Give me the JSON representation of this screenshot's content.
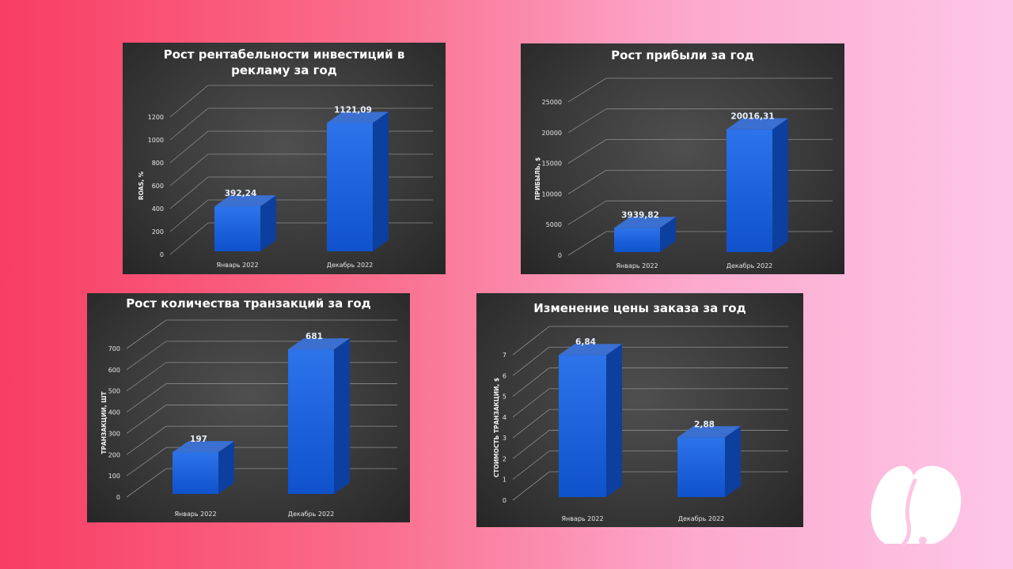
{
  "colors": {
    "bar_front": "#1a5fd9",
    "bar_top": "#3b6fd0",
    "bar_side": "#0d3f9e",
    "grid": "#8c8c8c",
    "panel_bg": "#3a3a3a"
  },
  "logo": {
    "icon": "elephant-logo-icon"
  },
  "chart_data": [
    {
      "type": "bar",
      "title_lines": [
        "Рост рентабельности инвестиций в",
        "рекламу за год"
      ],
      "ylabel": "ROAS, %",
      "xlabel": "",
      "categories": [
        "Январь 2022",
        "Декабрь 2022"
      ],
      "values": [
        392.24,
        1121.09
      ],
      "value_labels": [
        "392,24",
        "1121,09"
      ],
      "yticks": [
        0,
        200,
        400,
        600,
        800,
        1000,
        1200
      ],
      "ylim": [
        0,
        1200
      ],
      "grid": true,
      "legend": "none"
    },
    {
      "type": "bar",
      "title_lines": [
        "Рост прибыли за год"
      ],
      "ylabel": "ПРИБЫЛЬ, $",
      "xlabel": "",
      "categories": [
        "Январь 2022",
        "Декабрь 2022"
      ],
      "values": [
        3939.82,
        20016.31
      ],
      "value_labels": [
        "3939,82",
        "20016,31"
      ],
      "yticks": [
        0,
        5000,
        10000,
        15000,
        20000,
        25000
      ],
      "ylim": [
        0,
        25000
      ],
      "grid": true,
      "legend": "none"
    },
    {
      "type": "bar",
      "title_lines": [
        "Рост количества транзакций за год"
      ],
      "ylabel": "ТРАНЗАКЦИИ, ШТ",
      "xlabel": "",
      "categories": [
        "Январь 2022",
        "Декабрь 2022"
      ],
      "values": [
        197,
        681
      ],
      "value_labels": [
        "197",
        "681"
      ],
      "yticks": [
        0,
        100,
        200,
        300,
        400,
        500,
        600,
        700
      ],
      "ylim": [
        0,
        700
      ],
      "grid": true,
      "legend": "none"
    },
    {
      "type": "bar",
      "title_lines": [
        "Изменение цены заказа за год"
      ],
      "ylabel": "СТОИМОСТЬ ТРАНЗАКЦИИ, $",
      "xlabel": "",
      "categories": [
        "Январь 2022",
        "Декабрь 2022"
      ],
      "values": [
        6.84,
        2.88
      ],
      "value_labels": [
        "6,84",
        "2,88"
      ],
      "yticks": [
        0,
        1,
        2,
        3,
        4,
        5,
        6,
        7
      ],
      "ylim": [
        0,
        7
      ],
      "grid": true,
      "legend": "none"
    }
  ]
}
